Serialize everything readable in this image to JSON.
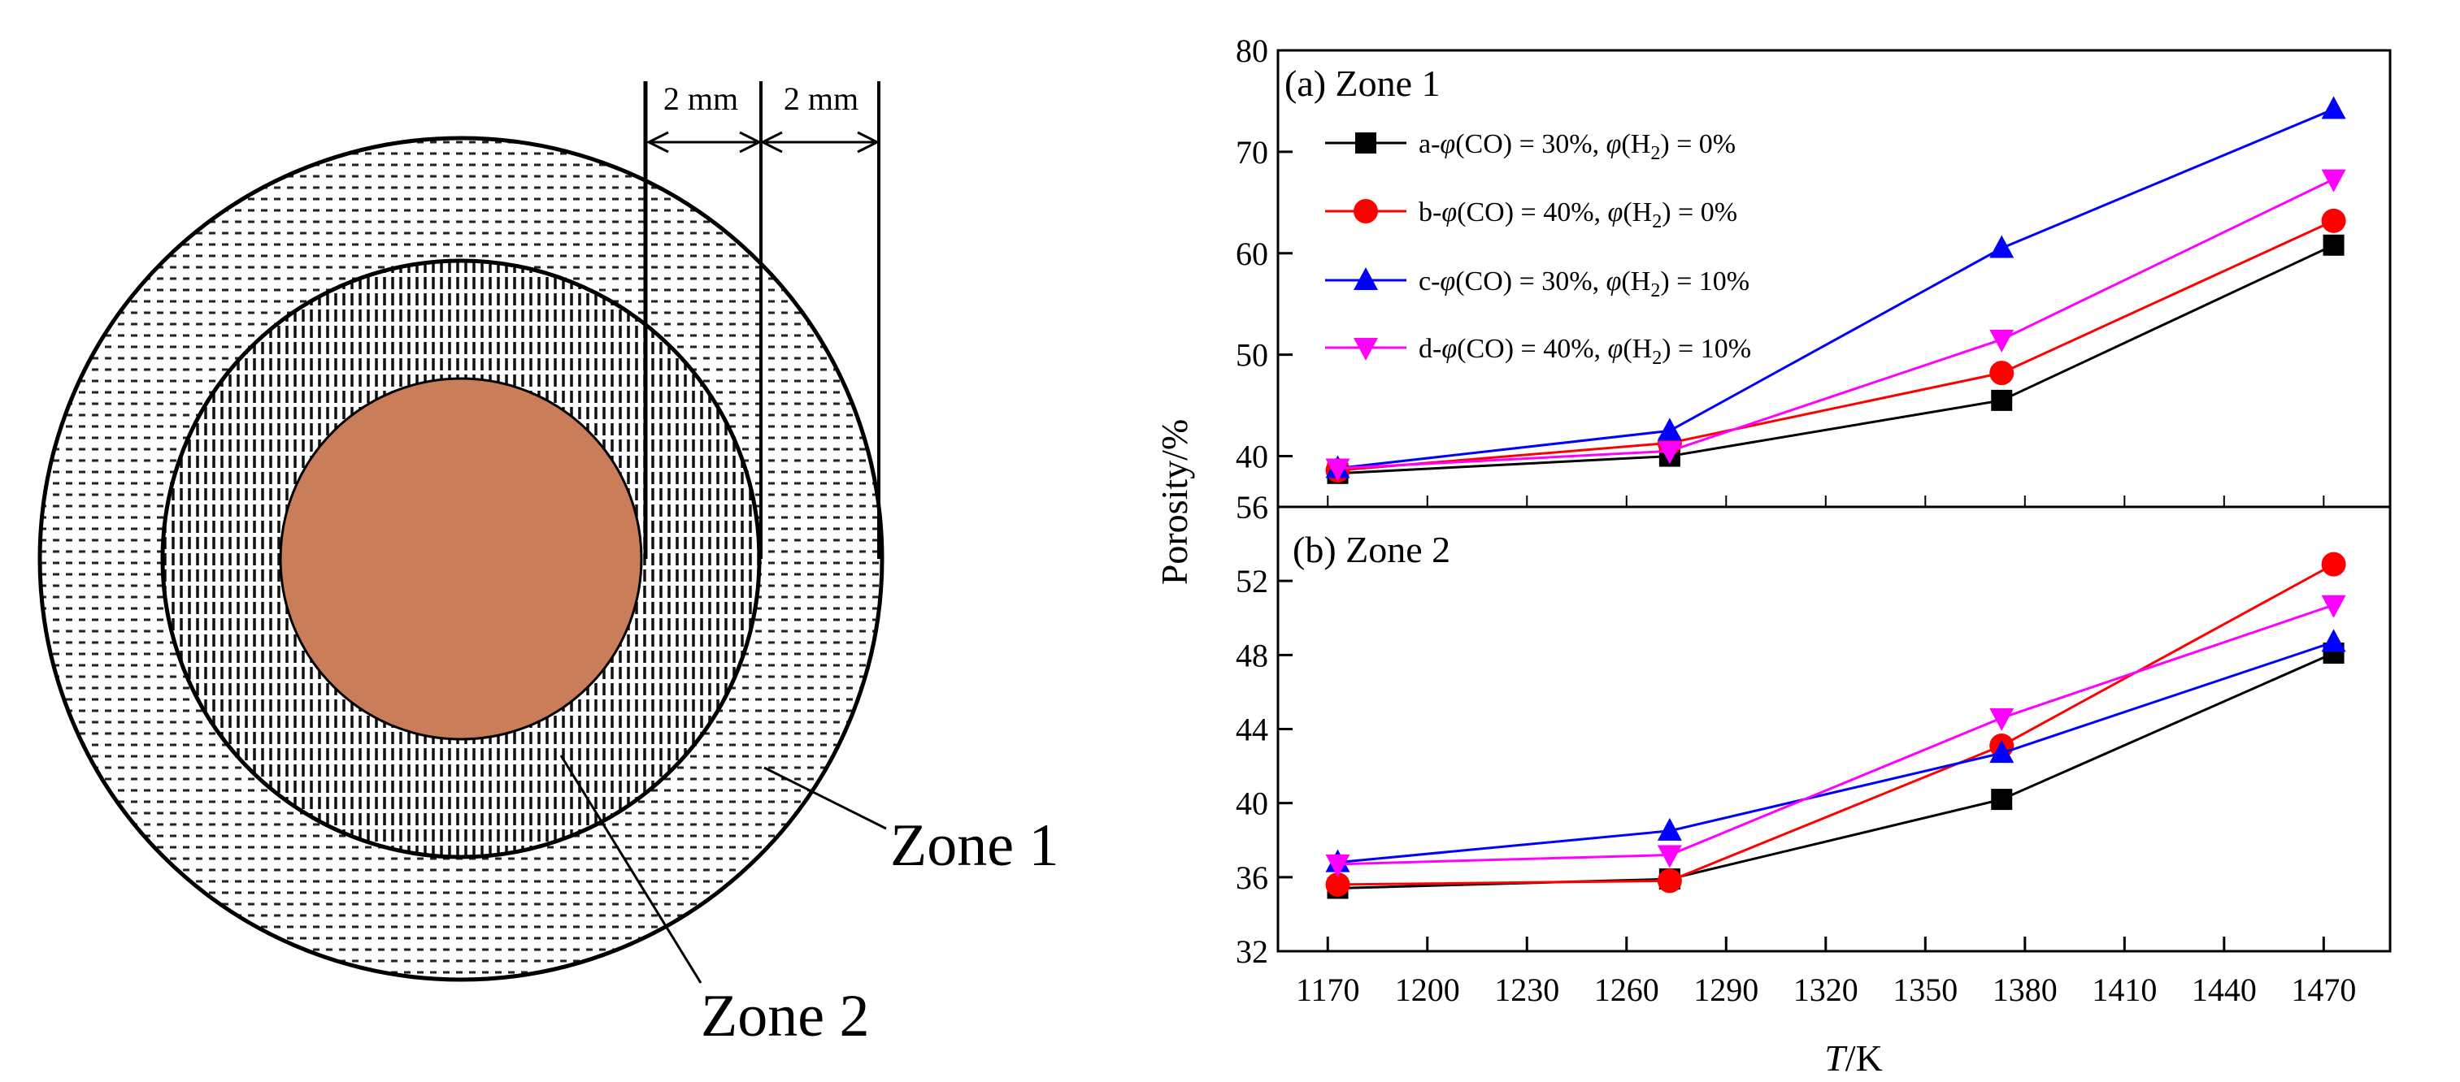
{
  "diagram": {
    "dimension_labels": [
      "2 mm",
      "2 mm"
    ],
    "zone1_label": "Zone 1",
    "zone2_label": "Zone 2",
    "colors": {
      "core": "#c97d58",
      "outline": "#000000"
    }
  },
  "chart_common": {
    "xlabel_italic": "T",
    "xlabel_rest": "/K",
    "ylabel": "Porosity/%",
    "x_ticks": [
      1170,
      1200,
      1230,
      1260,
      1290,
      1320,
      1350,
      1380,
      1410,
      1440,
      1470
    ],
    "xlim": [
      1155,
      1490
    ]
  },
  "legend": [
    {
      "prefix": "a-",
      "co": "30%",
      "h2": "0%"
    },
    {
      "prefix": "b-",
      "co": "40%",
      "h2": "0%"
    },
    {
      "prefix": "c-",
      "co": "30%",
      "h2": "10%"
    },
    {
      "prefix": "d-",
      "co": "40%",
      "h2": "10%"
    }
  ],
  "chart_data": [
    {
      "type": "line",
      "title": "(a) Zone 1",
      "xlabel": "T/K",
      "ylabel": "Porosity/%",
      "x": [
        1173,
        1273,
        1373,
        1473
      ],
      "ylim": [
        35,
        80
      ],
      "y_ticks": [
        40,
        50,
        60,
        70,
        80
      ],
      "series": [
        {
          "name": "a-φ(CO) = 30%, φ(H2) = 0%",
          "color": "#000000",
          "marker": "square",
          "values": [
            38.3,
            40.0,
            45.5,
            60.8
          ]
        },
        {
          "name": "b-φ(CO) = 40%, φ(H2) = 0%",
          "color": "#ff0000",
          "marker": "circle",
          "values": [
            38.6,
            41.3,
            48.2,
            63.2
          ]
        },
        {
          "name": "c-φ(CO) = 30%, φ(H2) = 10%",
          "color": "#0000ff",
          "marker": "triangle-up",
          "values": [
            38.8,
            42.5,
            60.5,
            74.2
          ]
        },
        {
          "name": "d-φ(CO) = 40%, φ(H2) = 10%",
          "color": "#ff00ff",
          "marker": "triangle-down",
          "values": [
            38.8,
            40.5,
            51.5,
            67.3
          ]
        }
      ]
    },
    {
      "type": "line",
      "title": "(b)  Zone 2",
      "xlabel": "T/K",
      "ylabel": "Porosity/%",
      "x": [
        1173,
        1273,
        1373,
        1473
      ],
      "ylim": [
        32,
        56
      ],
      "y_ticks": [
        32,
        36,
        40,
        44,
        48,
        52,
        56
      ],
      "series": [
        {
          "name": "a-φ(CO) = 30%, φ(H2) = 0%",
          "color": "#000000",
          "marker": "square",
          "values": [
            35.4,
            35.9,
            40.2,
            48.1
          ]
        },
        {
          "name": "b-φ(CO) = 40%, φ(H2) = 0%",
          "color": "#ff0000",
          "marker": "circle",
          "values": [
            35.6,
            35.8,
            43.1,
            52.9
          ]
        },
        {
          "name": "c-φ(CO) = 30%, φ(H2) = 10%",
          "color": "#0000ff",
          "marker": "triangle-up",
          "values": [
            36.8,
            38.5,
            42.7,
            48.7
          ]
        },
        {
          "name": "d-φ(CO) = 40%, φ(H2) = 10%",
          "color": "#ff00ff",
          "marker": "triangle-down",
          "values": [
            36.7,
            37.2,
            44.6,
            50.7
          ]
        }
      ]
    }
  ]
}
